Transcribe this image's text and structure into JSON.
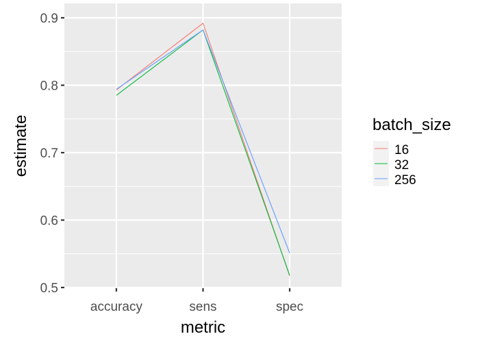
{
  "chart_data": {
    "type": "line",
    "categories": [
      "accuracy",
      "sens",
      "spec"
    ],
    "xlabel": "metric",
    "ylabel": "estimate",
    "ylim": [
      0.5,
      0.9
    ],
    "yticks": [
      0.5,
      0.6,
      0.7,
      0.8,
      0.9
    ],
    "ytick_labels": [
      "0.5",
      "0.6",
      "0.7",
      "0.8",
      "0.9"
    ],
    "grid": true,
    "legend": {
      "title": "batch_size",
      "placement": "right"
    },
    "series": [
      {
        "name": "16",
        "color": "#F8766D",
        "values": [
          0.793,
          0.892,
          0.517
        ]
      },
      {
        "name": "32",
        "color": "#00BA38",
        "values": [
          0.785,
          0.882,
          0.518
        ]
      },
      {
        "name": "256",
        "color": "#619CFF",
        "values": [
          0.794,
          0.882,
          0.551
        ]
      }
    ]
  }
}
